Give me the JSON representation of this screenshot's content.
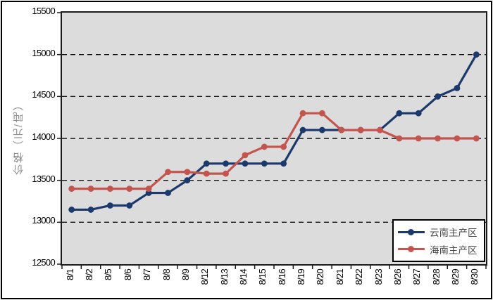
{
  "chart_data": {
    "type": "line",
    "title": "",
    "xlabel": "",
    "ylabel": "价格（元/吨）",
    "ylim": [
      12500,
      15500
    ],
    "ytick_step": 500,
    "yticks": [
      15500,
      15000,
      14500,
      14000,
      13500,
      13000,
      12500
    ],
    "grid": "horizontal-dashed-black",
    "plot_background": "#dcdcdc",
    "legend_position": "bottom-right",
    "categories": [
      "8/1",
      "8/2",
      "8/5",
      "8/6",
      "8/7",
      "8/8",
      "8/9",
      "8/12",
      "8/13",
      "8/14",
      "8/15",
      "8/16",
      "8/19",
      "8/20",
      "8/21",
      "8/22",
      "8/23",
      "8/26",
      "8/27",
      "8/28",
      "8/29",
      "8/30"
    ],
    "series": [
      {
        "name": "云南主产区",
        "color": "#1b3a6b",
        "marker": "circle",
        "values": [
          13150,
          13150,
          13200,
          13200,
          13350,
          13350,
          13500,
          13700,
          13700,
          13700,
          13700,
          13700,
          14100,
          14100,
          14100,
          14100,
          14100,
          14300,
          14300,
          14500,
          14600,
          15000
        ]
      },
      {
        "name": "海南主产区",
        "color": "#c4544e",
        "marker": "circle",
        "values": [
          13400,
          13400,
          13400,
          13400,
          13400,
          13600,
          13600,
          13580,
          13580,
          13800,
          13900,
          13900,
          14300,
          14300,
          14100,
          14100,
          14100,
          14000,
          14000,
          14000,
          14000,
          14000
        ]
      }
    ]
  },
  "colors": {
    "frame_border": "#000000",
    "plot_border": "#1c1c1c",
    "gridline": "#111111",
    "axis_text": "#000000",
    "y_title_text": "#8f8f8f",
    "legend_text": "#4a4a4a",
    "background": "#ffffff"
  }
}
